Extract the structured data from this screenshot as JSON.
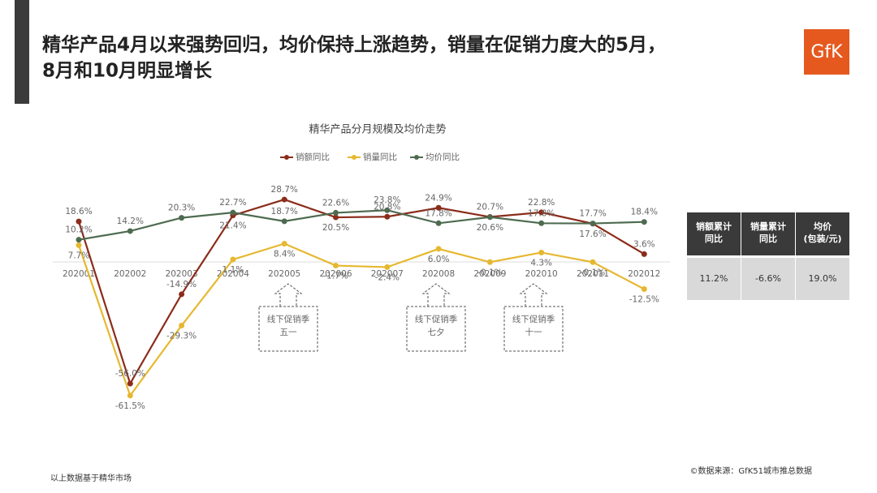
{
  "header": {
    "title": [
      "精华产品4月以来强势回归，均价保持上涨趋势，销量在促销力度大的5月，",
      "8月和10月明显增长"
    ],
    "logo": "GfK"
  },
  "chart_data": {
    "type": "line",
    "title": "精华产品分月规模及均价走势",
    "categories": [
      "202001",
      "202002",
      "202003",
      "202004",
      "202005",
      "202006",
      "202007",
      "202008",
      "202009",
      "202010",
      "202011",
      "202012"
    ],
    "series": [
      {
        "name": "销额同比",
        "color": "#8b2c1a",
        "values": [
          18.6,
          -56.0,
          -14.9,
          21.4,
          28.7,
          20.5,
          20.8,
          24.9,
          20.7,
          22.8,
          17.6,
          3.6
        ],
        "value_labels": [
          "18.6%",
          "-56.0%",
          "-14.9%",
          "21.4%",
          "28.7%",
          "20.5%",
          "20.8%",
          "24.9%",
          "20.7%",
          "22.8%",
          "17.6%",
          "3.6%"
        ]
      },
      {
        "name": "销量同比",
        "color": "#e6b830",
        "values": [
          7.7,
          -61.5,
          -29.3,
          1.1,
          8.4,
          -1.7,
          -2.4,
          6.0,
          -0.1,
          4.3,
          -0.1,
          -12.5
        ],
        "value_labels": [
          "7.7%",
          "-61.5%",
          "-29.3%",
          "1.1%",
          "8.4%",
          "-1.7%",
          "-2.4%",
          "6.0%",
          "-0.1%",
          "4.3%",
          "-0.1%",
          "-12.5%"
        ]
      },
      {
        "name": "均价同比",
        "color": "#4e6b50",
        "values": [
          10.2,
          14.2,
          20.3,
          22.7,
          18.7,
          22.6,
          23.8,
          17.8,
          20.6,
          17.8,
          17.7,
          18.4
        ],
        "value_labels": [
          "10.2%",
          "14.2%",
          "20.3%",
          "22.7%",
          "18.7%",
          "22.6%",
          "23.8%",
          "17.8%",
          "20.6%",
          "17.8%",
          "17.7%",
          "18.4%"
        ]
      }
    ],
    "ylim": [
      -70,
      35
    ],
    "legend": "top",
    "annotations": [
      {
        "text": "线下促销季",
        "sub": "五一"
      },
      {
        "text": "线下促销季",
        "sub": "七夕"
      },
      {
        "text": "线下促销季",
        "sub": "十一"
      }
    ]
  },
  "table": {
    "header": [
      [
        "销额累计",
        "同比"
      ],
      [
        "销量累计",
        "同比"
      ],
      [
        "均价",
        "(包装/元)"
      ]
    ],
    "rows": [
      [
        "11.2%",
        "-6.6%",
        "19.0%"
      ]
    ]
  },
  "footer": {
    "note": "以上数据基于精华市场",
    "source": "©数据来源：GfK51城市推总数据"
  }
}
